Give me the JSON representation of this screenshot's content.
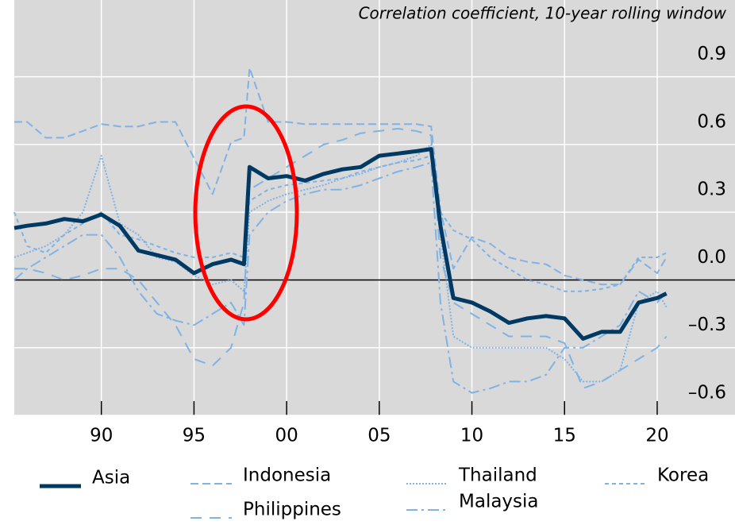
{
  "chart_data": {
    "type": "line",
    "title": "Correlation coefficient, 10-year rolling window",
    "x": [
      1985.3,
      1986,
      1987,
      1988,
      1989,
      1990,
      1991,
      1992,
      1993,
      1994,
      1995,
      1996,
      1997,
      1997.7,
      1998,
      1999,
      2000,
      2001,
      2002,
      2003,
      2004,
      2005,
      2006,
      2007,
      2007.8,
      2008.3,
      2009,
      2010,
      2011,
      2012,
      2013,
      2014,
      2015,
      2016,
      2017,
      2018,
      2019,
      2020,
      2020.5
    ],
    "series": [
      {
        "name": "Asia",
        "color": "#003a63",
        "values": [
          0.23,
          0.24,
          0.25,
          0.27,
          0.26,
          0.29,
          0.24,
          0.13,
          0.11,
          0.09,
          0.03,
          0.07,
          0.09,
          0.07,
          0.5,
          0.45,
          0.46,
          0.44,
          0.47,
          0.49,
          0.5,
          0.55,
          0.56,
          0.57,
          0.58,
          0.24,
          -0.08,
          -0.1,
          -0.14,
          -0.19,
          -0.17,
          -0.16,
          -0.17,
          -0.26,
          -0.23,
          -0.23,
          -0.1,
          -0.08,
          -0.06
        ]
      },
      {
        "name": "Indonesia",
        "color": "#7fb2e5",
        "values": [
          0.7,
          0.7,
          0.63,
          0.63,
          0.66,
          0.69,
          0.68,
          0.68,
          0.7,
          0.7,
          0.54,
          0.38,
          0.61,
          0.63,
          0.94,
          0.7,
          0.7,
          0.69,
          0.69,
          0.69,
          0.69,
          0.69,
          0.69,
          0.69,
          0.68,
          0.31,
          0.05,
          0.19,
          0.16,
          0.1,
          0.08,
          0.07,
          0.02,
          0,
          -0.02,
          -0.02,
          0.09,
          0.03,
          0.1
        ]
      },
      {
        "name": "Thailand",
        "color": "#7fb2e5",
        "values": [
          0.1,
          0.12,
          0.15,
          0.2,
          0.3,
          0.55,
          0.25,
          0.2,
          0.1,
          0.08,
          0.02,
          -0.02,
          0,
          -0.05,
          0.3,
          0.35,
          0.38,
          0.4,
          0.42,
          0.45,
          0.47,
          0.5,
          0.52,
          0.55,
          0.6,
          0.2,
          -0.25,
          -0.3,
          -0.3,
          -0.3,
          -0.3,
          -0.3,
          -0.35,
          -0.45,
          -0.45,
          -0.4,
          -0.1,
          -0.05,
          -0.12
        ]
      },
      {
        "name": "Korea",
        "color": "#7fb2e5",
        "values": [
          0.3,
          0.15,
          0.12,
          0.2,
          0.25,
          0.3,
          0.2,
          0.18,
          0.15,
          0.12,
          0.1,
          0.1,
          0.12,
          0.1,
          0.35,
          0.4,
          0.42,
          0.43,
          0.44,
          0.45,
          0.48,
          0.5,
          0.52,
          0.53,
          0.55,
          0.3,
          0.22,
          0.18,
          0.1,
          0.05,
          0,
          -0.02,
          -0.05,
          -0.05,
          -0.04,
          -0.02,
          0.1,
          0.1,
          0.12
        ]
      },
      {
        "name": "Philippines",
        "color": "#7fb2e5",
        "values": [
          0.05,
          0.05,
          0.03,
          0,
          0.02,
          0.05,
          0.05,
          0,
          -0.1,
          -0.2,
          -0.35,
          -0.38,
          -0.3,
          -0.1,
          0.4,
          0.45,
          0.5,
          0.55,
          0.6,
          0.62,
          0.65,
          0.66,
          0.67,
          0.66,
          0.64,
          0.1,
          -0.1,
          -0.15,
          -0.2,
          -0.25,
          -0.25,
          -0.25,
          -0.28,
          -0.48,
          -0.45,
          -0.4,
          -0.35,
          -0.3,
          -0.25
        ]
      },
      {
        "name": "Malaysia",
        "color": "#7fb2e5",
        "values": [
          0,
          0.05,
          0.1,
          0.15,
          0.2,
          0.2,
          0.1,
          -0.05,
          -0.15,
          -0.18,
          -0.2,
          -0.15,
          -0.1,
          -0.2,
          0.2,
          0.3,
          0.35,
          0.38,
          0.4,
          0.4,
          0.42,
          0.45,
          0.48,
          0.5,
          0.52,
          -0.1,
          -0.45,
          -0.5,
          -0.48,
          -0.45,
          -0.45,
          -0.42,
          -0.3,
          -0.3,
          -0.25,
          -0.2,
          -0.05,
          -0.1,
          -0.05
        ]
      }
    ],
    "xlim": [
      1985.3,
      2024.2
    ],
    "xticks": [
      {
        "value": 1990,
        "label": "90"
      },
      {
        "value": 1995,
        "label": "95"
      },
      {
        "value": 2000,
        "label": "00"
      },
      {
        "value": 2005,
        "label": "05"
      },
      {
        "value": 2010,
        "label": "10"
      },
      {
        "value": 2015,
        "label": "15"
      },
      {
        "value": 2020,
        "label": "20"
      }
    ],
    "ylim": [
      -0.6,
      1.24
    ],
    "yticks": [
      {
        "value": -0.6,
        "label": "–0.6"
      },
      {
        "value": -0.3,
        "label": "–0.3"
      },
      {
        "value": 0,
        "label": "0.0"
      },
      0.3,
      0.6,
      0.9
    ],
    "grid": true
  }
}
